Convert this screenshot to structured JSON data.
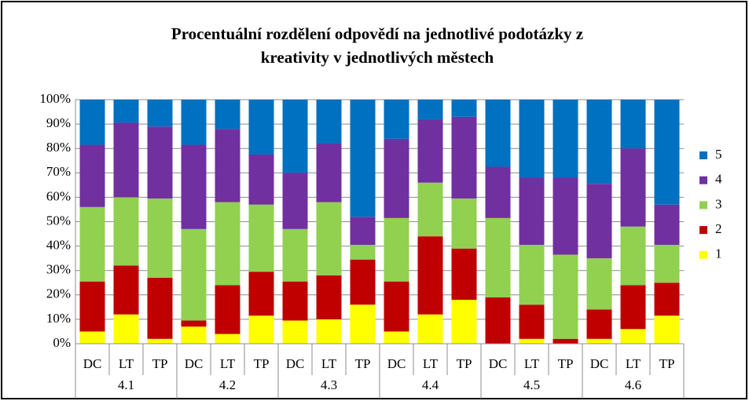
{
  "chart_data": {
    "type": "stacked_bar",
    "title": [
      "Procentuální rozdělení odpovědí na jednotlivé podotázky z",
      "kreativity v jednotlivých městech"
    ],
    "categories": [
      "DC",
      "LT",
      "TP",
      "DC",
      "LT",
      "TP",
      "DC",
      "LT",
      "TP",
      "DC",
      "LT",
      "TP",
      "DC",
      "LT",
      "TP",
      "DC",
      "LT",
      "TP"
    ],
    "groups": [
      "4.1",
      "4.2",
      "4.3",
      "4.4",
      "4.5",
      "4.6"
    ],
    "series": [
      {
        "name": "1",
        "color": "#ffff00",
        "values": [
          5,
          12,
          2,
          7,
          4,
          11.5,
          9.5,
          10,
          16,
          5,
          12,
          18,
          0,
          2,
          0,
          2,
          6,
          11.5
        ]
      },
      {
        "name": "2",
        "color": "#c00000",
        "values": [
          20.5,
          20,
          25,
          2.5,
          20,
          18,
          16,
          18,
          18.5,
          20.5,
          32,
          21,
          19,
          14,
          2,
          12,
          18,
          13.5
        ]
      },
      {
        "name": "3",
        "color": "#92d050",
        "values": [
          30.5,
          28,
          32.5,
          37.5,
          34,
          27.5,
          21.5,
          30,
          6,
          26,
          22,
          20.5,
          32.5,
          24.5,
          34.5,
          21,
          24,
          15.5
        ]
      },
      {
        "name": "4",
        "color": "#7030a0",
        "values": [
          25.5,
          30.5,
          29.5,
          34.5,
          30,
          20.5,
          23,
          24,
          11.5,
          32.5,
          26,
          33.5,
          21,
          27.5,
          31.5,
          30.5,
          32,
          16.5
        ]
      },
      {
        "name": "5",
        "color": "#0070c0",
        "values": [
          18.5,
          9.5,
          11,
          18.5,
          12,
          22.5,
          30,
          18,
          48,
          16,
          8,
          7,
          27.5,
          32,
          32,
          34.5,
          20,
          43
        ]
      }
    ],
    "ylim": [
      0,
      100
    ],
    "yticks": [
      {
        "value": 0,
        "label": "0%"
      },
      {
        "value": 10,
        "label": "10%"
      },
      {
        "value": 20,
        "label": "20%"
      },
      {
        "value": 30,
        "label": "30%"
      },
      {
        "value": 40,
        "label": "40%"
      },
      {
        "value": 50,
        "label": "50%"
      },
      {
        "value": 60,
        "label": "60%"
      },
      {
        "value": 70,
        "label": "70%"
      },
      {
        "value": 80,
        "label": "80%"
      },
      {
        "value": 90,
        "label": "90%"
      },
      {
        "value": 100,
        "label": "100%"
      }
    ],
    "grid": true,
    "legend": "right"
  }
}
